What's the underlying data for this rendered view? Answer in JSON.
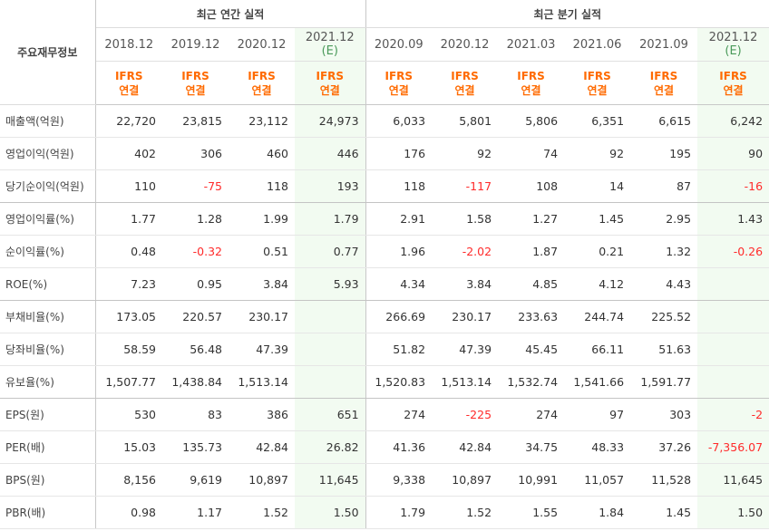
{
  "header": {
    "row_label_title": "주요재무정보",
    "annual_title": "최근 연간 실적",
    "quarter_title": "최근 분기 실적",
    "annual_periods": [
      {
        "label": "2018.12",
        "est": ""
      },
      {
        "label": "2019.12",
        "est": ""
      },
      {
        "label": "2020.12",
        "est": ""
      },
      {
        "label": "2021.12",
        "est": "(E)"
      }
    ],
    "quarter_periods": [
      {
        "label": "2020.09",
        "est": ""
      },
      {
        "label": "2020.12",
        "est": ""
      },
      {
        "label": "2021.03",
        "est": ""
      },
      {
        "label": "2021.06",
        "est": ""
      },
      {
        "label": "2021.09",
        "est": ""
      },
      {
        "label": "2021.12",
        "est": "(E)"
      }
    ],
    "basis_line1": "IFRS",
    "basis_line2": "연결"
  },
  "colors": {
    "accent": "#ff6a00",
    "negative": "#ff2a2a",
    "estimate_bg": "#f2fbf1"
  },
  "rows": [
    {
      "label": "매출액(억원)",
      "values": [
        "22,720",
        "23,815",
        "23,112",
        "24,973",
        "6,033",
        "5,801",
        "5,806",
        "6,351",
        "6,615",
        "6,242"
      ]
    },
    {
      "label": "영업이익(억원)",
      "values": [
        "402",
        "306",
        "460",
        "446",
        "176",
        "92",
        "74",
        "92",
        "195",
        "90"
      ]
    },
    {
      "label": "당기순이익(억원)",
      "values": [
        "110",
        "-75",
        "118",
        "193",
        "118",
        "-117",
        "108",
        "14",
        "87",
        "-16"
      ]
    },
    {
      "label": "영업이익률(%)",
      "values": [
        "1.77",
        "1.28",
        "1.99",
        "1.79",
        "2.91",
        "1.58",
        "1.27",
        "1.45",
        "2.95",
        "1.43"
      ]
    },
    {
      "label": "순이익률(%)",
      "values": [
        "0.48",
        "-0.32",
        "0.51",
        "0.77",
        "1.96",
        "-2.02",
        "1.87",
        "0.21",
        "1.32",
        "-0.26"
      ]
    },
    {
      "label": "ROE(%)",
      "values": [
        "7.23",
        "0.95",
        "3.84",
        "5.93",
        "4.34",
        "3.84",
        "4.85",
        "4.12",
        "4.43",
        ""
      ]
    },
    {
      "label": "부채비율(%)",
      "values": [
        "173.05",
        "220.57",
        "230.17",
        "",
        "266.69",
        "230.17",
        "233.63",
        "244.74",
        "225.52",
        ""
      ]
    },
    {
      "label": "당좌비율(%)",
      "values": [
        "58.59",
        "56.48",
        "47.39",
        "",
        "51.82",
        "47.39",
        "45.45",
        "66.11",
        "51.63",
        ""
      ]
    },
    {
      "label": "유보율(%)",
      "values": [
        "1,507.77",
        "1,438.84",
        "1,513.14",
        "",
        "1,520.83",
        "1,513.14",
        "1,532.74",
        "1,541.66",
        "1,591.77",
        ""
      ]
    },
    {
      "label": "EPS(원)",
      "values": [
        "530",
        "83",
        "386",
        "651",
        "274",
        "-225",
        "274",
        "97",
        "303",
        "-2"
      ]
    },
    {
      "label": "PER(배)",
      "values": [
        "15.03",
        "135.73",
        "42.84",
        "26.82",
        "41.36",
        "42.84",
        "34.75",
        "48.33",
        "37.26",
        "-7,356.07"
      ]
    },
    {
      "label": "BPS(원)",
      "values": [
        "8,156",
        "9,619",
        "10,897",
        "11,645",
        "9,338",
        "10,897",
        "10,991",
        "11,057",
        "11,528",
        "11,645"
      ]
    },
    {
      "label": "PBR(배)",
      "values": [
        "0.98",
        "1.17",
        "1.52",
        "1.50",
        "1.79",
        "1.52",
        "1.55",
        "1.84",
        "1.45",
        "1.50"
      ]
    }
  ]
}
